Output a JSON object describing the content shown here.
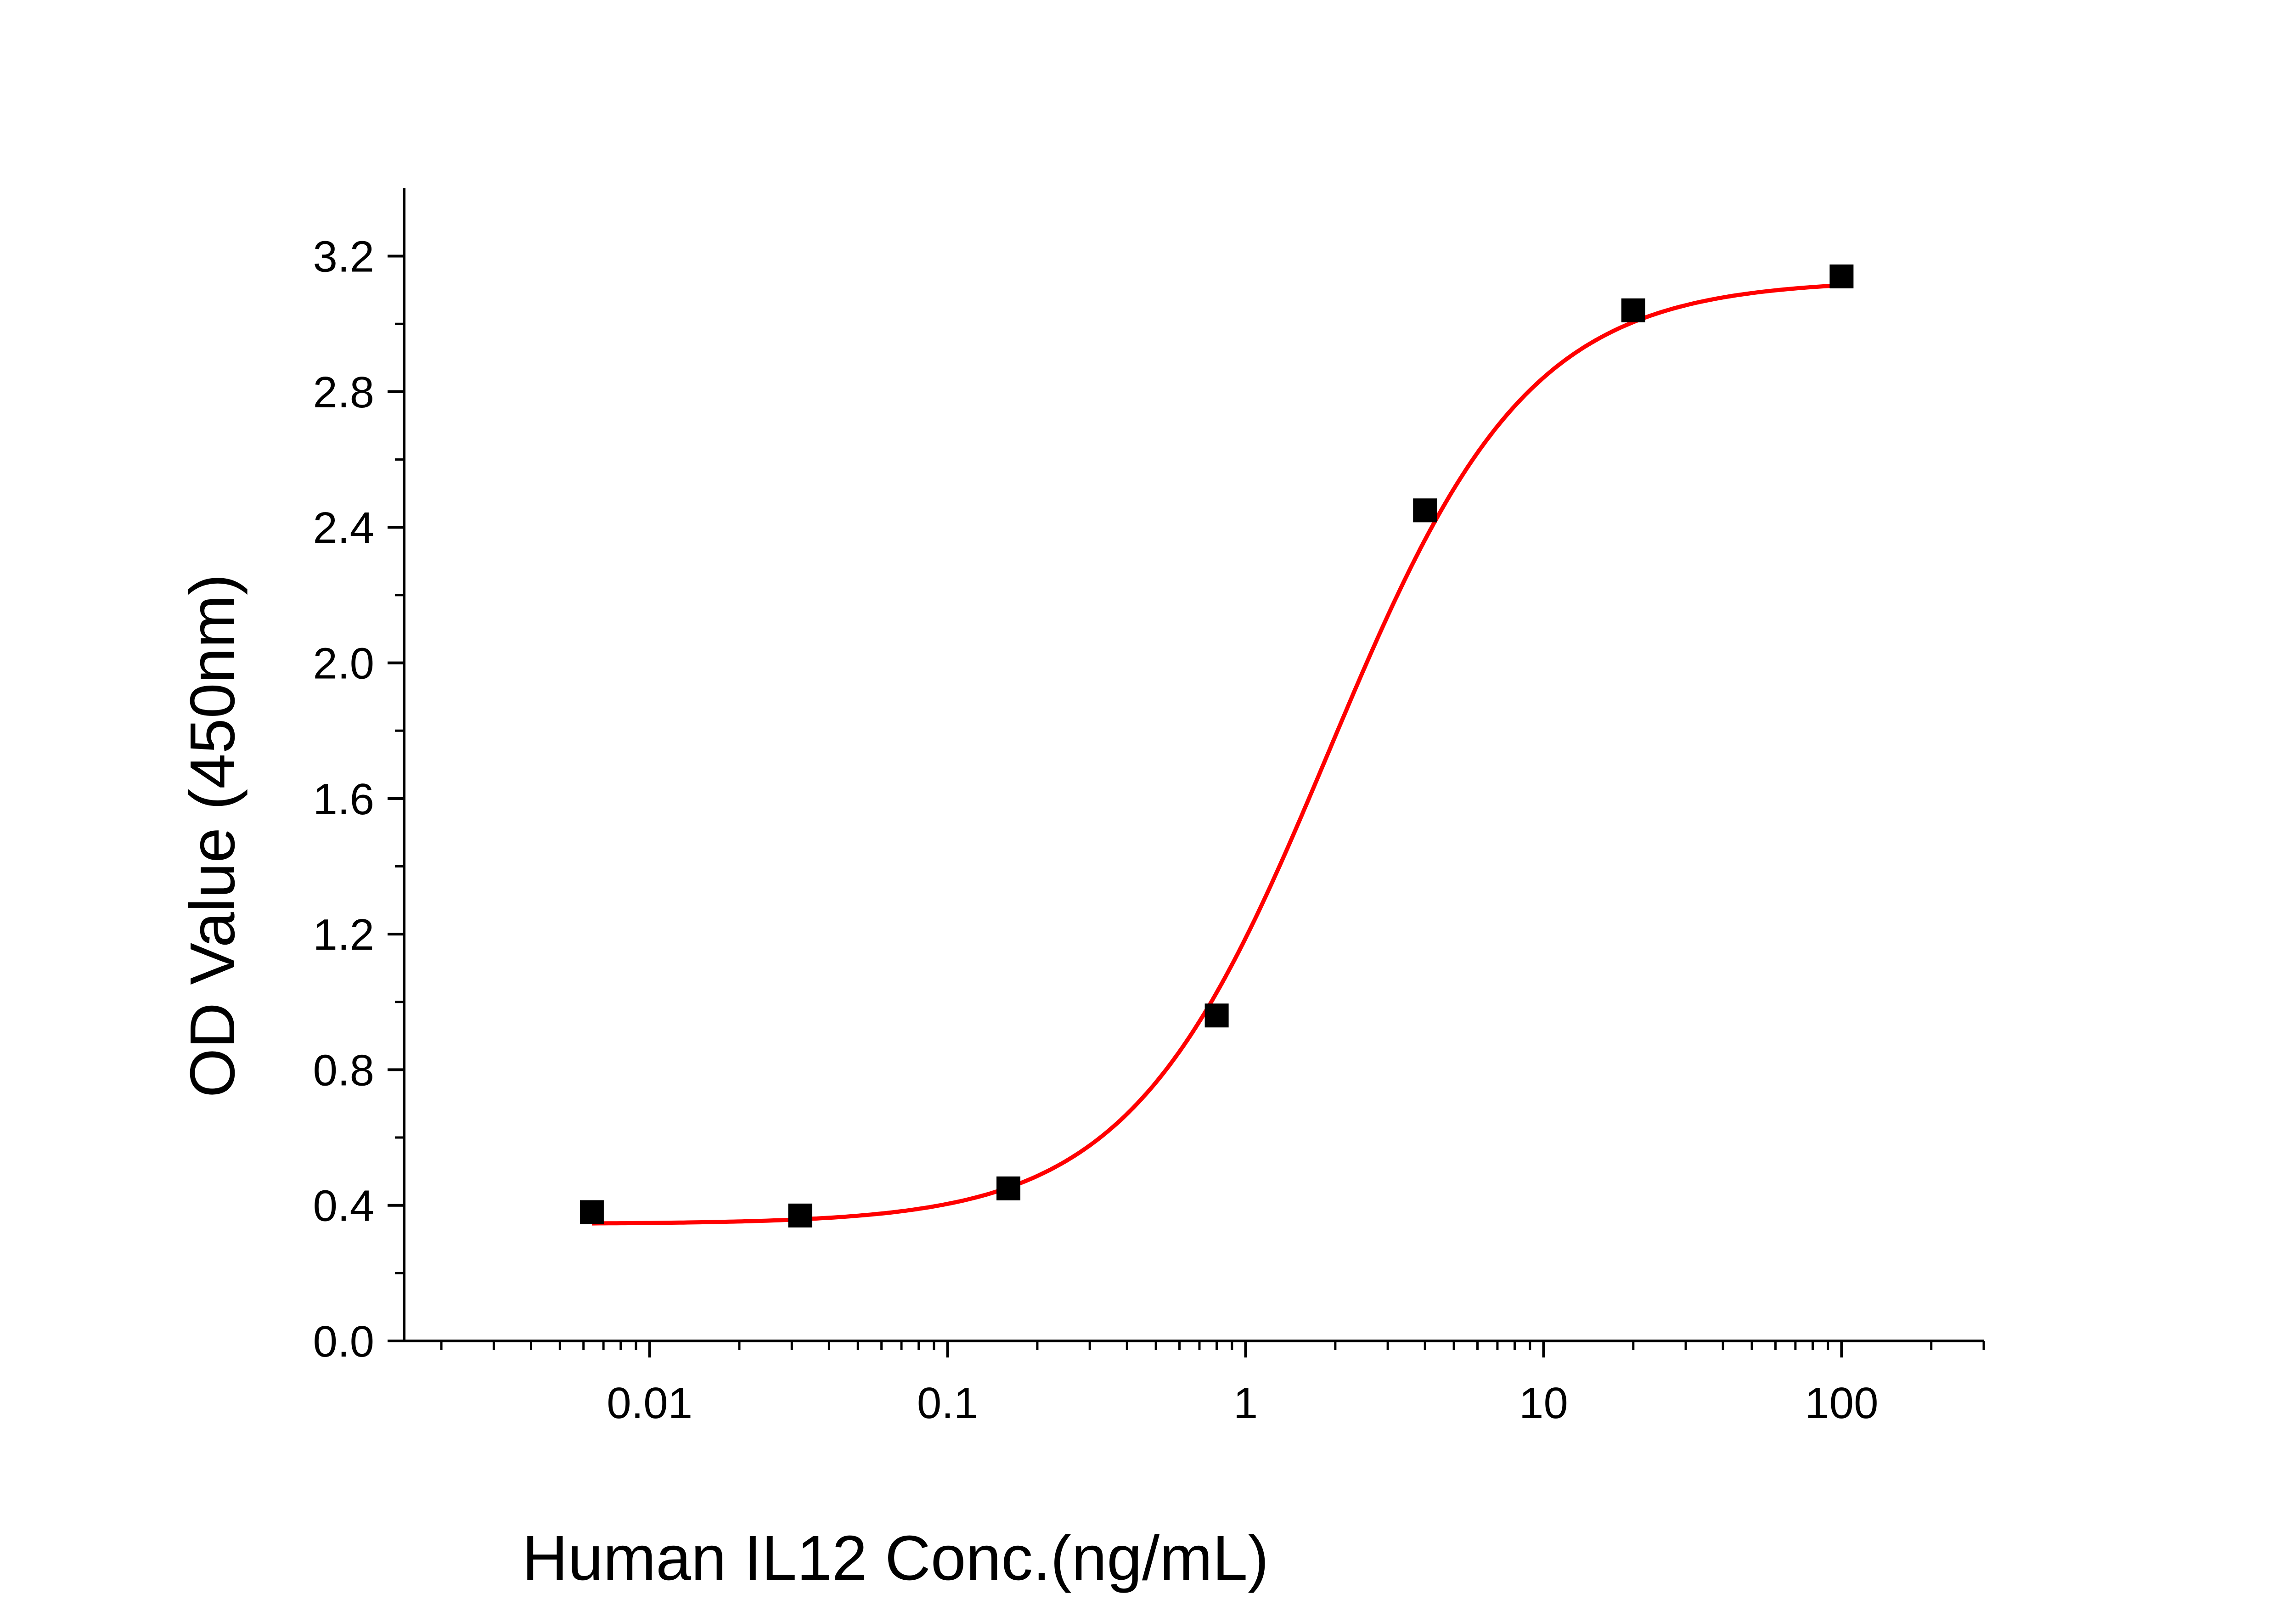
{
  "chart_data": {
    "type": "scatter",
    "title": "",
    "xlabel": "Human IL12 Conc.(ng/mL)",
    "ylabel": "OD Value (450nm)",
    "x_scale": "log",
    "xlim": [
      0.0015,
      300
    ],
    "ylim": [
      0,
      3.4
    ],
    "x_ticks": [
      0.01,
      0.1,
      1,
      10,
      100
    ],
    "x_tick_labels": [
      "0.01",
      "0.1",
      "1",
      "10",
      "100"
    ],
    "y_ticks": [
      0,
      0.4,
      0.8,
      1.2,
      1.6,
      2.0,
      2.4,
      2.8,
      3.2
    ],
    "y_tick_labels": [
      "0.0",
      "0.4",
      "0.8",
      "1.2",
      "1.6",
      "2.0",
      "2.4",
      "2.8",
      "3.2"
    ],
    "grid": false,
    "legend": "none",
    "series": [
      {
        "kind": "points",
        "marker": "square",
        "color": "#000000",
        "x": [
          0.0064,
          0.032,
          0.16,
          0.8,
          4,
          20,
          100
        ],
        "y": [
          0.38,
          0.37,
          0.45,
          0.96,
          2.45,
          3.04,
          3.14
        ]
      },
      {
        "kind": "fit-curve",
        "model": "four-parameter-logistic",
        "color": "#ff0000",
        "bottom": 0.345,
        "top": 3.13,
        "ec50": 1.9,
        "hill": 1.3,
        "x_range": [
          0.0064,
          100
        ]
      }
    ]
  }
}
